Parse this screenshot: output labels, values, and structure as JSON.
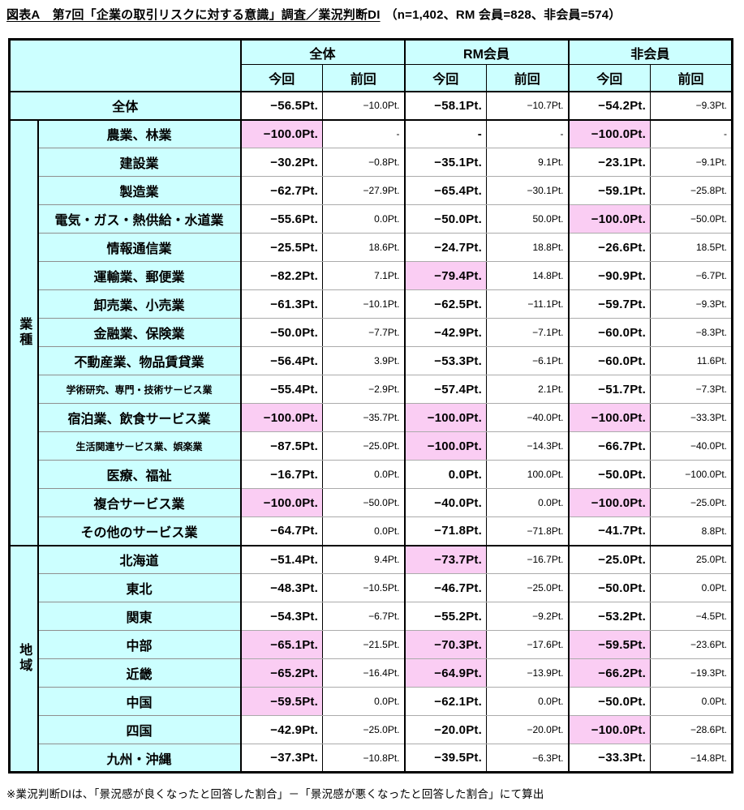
{
  "title": {
    "main": "図表А　第7回「企業の取引リスクに対する意識」調査／業況判断DI",
    "note": "（n=1,402、RM 会員=828、非会員=574）"
  },
  "footnote": "※業況判断DIは、「景況感が良くなったと回答した割合」－「景況感が悪くなったと回答した割合」にて算出",
  "colors": {
    "header_bg": "#ccffff",
    "label_bg": "#ccffff",
    "highlight_bg": "#facdf3",
    "grid_minor": "#ababab",
    "grid_major": "#000000"
  },
  "table": {
    "col_groups": [
      "全体",
      "RM会員",
      "非会員"
    ],
    "sub_headers": [
      "今回",
      "前回"
    ],
    "sections": [
      {
        "group_label": "",
        "rows": [
          {
            "label": "全体",
            "cells": [
              {
                "t": "−56.5Pt.",
                "hl": false
              },
              {
                "t": "−10.0Pt.",
                "hl": false
              },
              {
                "t": "−58.1Pt.",
                "hl": false
              },
              {
                "t": "−10.7Pt.",
                "hl": false
              },
              {
                "t": "−54.2Pt.",
                "hl": false
              },
              {
                "t": "−9.3Pt.",
                "hl": false
              }
            ]
          }
        ]
      },
      {
        "group_label": "業種",
        "rows": [
          {
            "label": "農業、林業",
            "cells": [
              {
                "t": "−100.0Pt.",
                "hl": true
              },
              {
                "t": "-",
                "hl": false
              },
              {
                "t": "-",
                "hl": false
              },
              {
                "t": "-",
                "hl": false
              },
              {
                "t": "−100.0Pt.",
                "hl": true
              },
              {
                "t": "-",
                "hl": false
              }
            ]
          },
          {
            "label": "建設業",
            "cells": [
              {
                "t": "−30.2Pt.",
                "hl": false
              },
              {
                "t": "−0.8Pt.",
                "hl": false
              },
              {
                "t": "−35.1Pt.",
                "hl": false
              },
              {
                "t": "9.1Pt.",
                "hl": false
              },
              {
                "t": "−23.1Pt.",
                "hl": false
              },
              {
                "t": "−9.1Pt.",
                "hl": false
              }
            ]
          },
          {
            "label": "製造業",
            "cells": [
              {
                "t": "−62.7Pt.",
                "hl": false
              },
              {
                "t": "−27.9Pt.",
                "hl": false
              },
              {
                "t": "−65.4Pt.",
                "hl": false
              },
              {
                "t": "−30.1Pt.",
                "hl": false
              },
              {
                "t": "−59.1Pt.",
                "hl": false
              },
              {
                "t": "−25.8Pt.",
                "hl": false
              }
            ]
          },
          {
            "label": "電気・ガス・熱供給・水道業",
            "cells": [
              {
                "t": "−55.6Pt.",
                "hl": false
              },
              {
                "t": "0.0Pt.",
                "hl": false
              },
              {
                "t": "−50.0Pt.",
                "hl": false
              },
              {
                "t": "50.0Pt.",
                "hl": false
              },
              {
                "t": "−100.0Pt.",
                "hl": true
              },
              {
                "t": "−50.0Pt.",
                "hl": false
              }
            ]
          },
          {
            "label": "情報通信業",
            "cells": [
              {
                "t": "−25.5Pt.",
                "hl": false
              },
              {
                "t": "18.6Pt.",
                "hl": false
              },
              {
                "t": "−24.7Pt.",
                "hl": false
              },
              {
                "t": "18.8Pt.",
                "hl": false
              },
              {
                "t": "−26.6Pt.",
                "hl": false
              },
              {
                "t": "18.5Pt.",
                "hl": false
              }
            ]
          },
          {
            "label": "運輸業、郵便業",
            "cells": [
              {
                "t": "−82.2Pt.",
                "hl": false
              },
              {
                "t": "7.1Pt.",
                "hl": false
              },
              {
                "t": "−79.4Pt.",
                "hl": true
              },
              {
                "t": "14.8Pt.",
                "hl": false
              },
              {
                "t": "−90.9Pt.",
                "hl": false
              },
              {
                "t": "−6.7Pt.",
                "hl": false
              }
            ]
          },
          {
            "label": "卸売業、小売業",
            "cells": [
              {
                "t": "−61.3Pt.",
                "hl": false
              },
              {
                "t": "−10.1Pt.",
                "hl": false
              },
              {
                "t": "−62.5Pt.",
                "hl": false
              },
              {
                "t": "−11.1Pt.",
                "hl": false
              },
              {
                "t": "−59.7Pt.",
                "hl": false
              },
              {
                "t": "−9.3Pt.",
                "hl": false
              }
            ]
          },
          {
            "label": "金融業、保険業",
            "cells": [
              {
                "t": "−50.0Pt.",
                "hl": false
              },
              {
                "t": "−7.7Pt.",
                "hl": false
              },
              {
                "t": "−42.9Pt.",
                "hl": false
              },
              {
                "t": "−7.1Pt.",
                "hl": false
              },
              {
                "t": "−60.0Pt.",
                "hl": false
              },
              {
                "t": "−8.3Pt.",
                "hl": false
              }
            ]
          },
          {
            "label": "不動産業、物品賃貸業",
            "cells": [
              {
                "t": "−56.4Pt.",
                "hl": false
              },
              {
                "t": "3.9Pt.",
                "hl": false
              },
              {
                "t": "−53.3Pt.",
                "hl": false
              },
              {
                "t": "−6.1Pt.",
                "hl": false
              },
              {
                "t": "−60.0Pt.",
                "hl": false
              },
              {
                "t": "11.6Pt.",
                "hl": false
              }
            ]
          },
          {
            "label": "学術研究、専門・技術サービス業",
            "small": true,
            "cells": [
              {
                "t": "−55.4Pt.",
                "hl": false
              },
              {
                "t": "−2.9Pt.",
                "hl": false
              },
              {
                "t": "−57.4Pt.",
                "hl": false
              },
              {
                "t": "2.1Pt.",
                "hl": false
              },
              {
                "t": "−51.7Pt.",
                "hl": false
              },
              {
                "t": "−7.3Pt.",
                "hl": false
              }
            ]
          },
          {
            "label": "宿泊業、飲食サービス業",
            "cells": [
              {
                "t": "−100.0Pt.",
                "hl": true
              },
              {
                "t": "−35.7Pt.",
                "hl": false
              },
              {
                "t": "−100.0Pt.",
                "hl": true
              },
              {
                "t": "−40.0Pt.",
                "hl": false
              },
              {
                "t": "−100.0Pt.",
                "hl": true
              },
              {
                "t": "−33.3Pt.",
                "hl": false
              }
            ]
          },
          {
            "label": "生活関連サービス業、娯楽業",
            "small": true,
            "cells": [
              {
                "t": "−87.5Pt.",
                "hl": false
              },
              {
                "t": "−25.0Pt.",
                "hl": false
              },
              {
                "t": "−100.0Pt.",
                "hl": true
              },
              {
                "t": "−14.3Pt.",
                "hl": false
              },
              {
                "t": "−66.7Pt.",
                "hl": false
              },
              {
                "t": "−40.0Pt.",
                "hl": false
              }
            ]
          },
          {
            "label": "医療、福祉",
            "cells": [
              {
                "t": "−16.7Pt.",
                "hl": false
              },
              {
                "t": "0.0Pt.",
                "hl": false
              },
              {
                "t": "0.0Pt.",
                "hl": false
              },
              {
                "t": "100.0Pt.",
                "hl": false
              },
              {
                "t": "−50.0Pt.",
                "hl": false
              },
              {
                "t": "−100.0Pt.",
                "hl": false
              }
            ]
          },
          {
            "label": "複合サービス業",
            "cells": [
              {
                "t": "−100.0Pt.",
                "hl": true
              },
              {
                "t": "−50.0Pt.",
                "hl": false
              },
              {
                "t": "−40.0Pt.",
                "hl": false
              },
              {
                "t": "0.0Pt.",
                "hl": false
              },
              {
                "t": "−100.0Pt.",
                "hl": true
              },
              {
                "t": "−25.0Pt.",
                "hl": false
              }
            ]
          },
          {
            "label": "その他のサービス業",
            "cells": [
              {
                "t": "−64.7Pt.",
                "hl": false
              },
              {
                "t": "0.0Pt.",
                "hl": false
              },
              {
                "t": "−71.8Pt.",
                "hl": false
              },
              {
                "t": "−71.8Pt.",
                "hl": false
              },
              {
                "t": "−41.7Pt.",
                "hl": false
              },
              {
                "t": "8.8Pt.",
                "hl": false
              }
            ]
          }
        ]
      },
      {
        "group_label": "地域",
        "rows": [
          {
            "label": "北海道",
            "cells": [
              {
                "t": "−51.4Pt.",
                "hl": false
              },
              {
                "t": "9.4Pt.",
                "hl": false
              },
              {
                "t": "−73.7Pt.",
                "hl": true
              },
              {
                "t": "−16.7Pt.",
                "hl": false
              },
              {
                "t": "−25.0Pt.",
                "hl": false
              },
              {
                "t": "25.0Pt.",
                "hl": false
              }
            ]
          },
          {
            "label": "東北",
            "cells": [
              {
                "t": "−48.3Pt.",
                "hl": false
              },
              {
                "t": "−10.5Pt.",
                "hl": false
              },
              {
                "t": "−46.7Pt.",
                "hl": false
              },
              {
                "t": "−25.0Pt.",
                "hl": false
              },
              {
                "t": "−50.0Pt.",
                "hl": false
              },
              {
                "t": "0.0Pt.",
                "hl": false
              }
            ]
          },
          {
            "label": "関東",
            "cells": [
              {
                "t": "−54.3Pt.",
                "hl": false
              },
              {
                "t": "−6.7Pt.",
                "hl": false
              },
              {
                "t": "−55.2Pt.",
                "hl": false
              },
              {
                "t": "−9.2Pt.",
                "hl": false
              },
              {
                "t": "−53.2Pt.",
                "hl": false
              },
              {
                "t": "−4.5Pt.",
                "hl": false
              }
            ]
          },
          {
            "label": "中部",
            "cells": [
              {
                "t": "−65.1Pt.",
                "hl": true
              },
              {
                "t": "−21.5Pt.",
                "hl": false
              },
              {
                "t": "−70.3Pt.",
                "hl": true
              },
              {
                "t": "−17.6Pt.",
                "hl": false
              },
              {
                "t": "−59.5Pt.",
                "hl": true
              },
              {
                "t": "−23.6Pt.",
                "hl": false
              }
            ]
          },
          {
            "label": "近畿",
            "cells": [
              {
                "t": "−65.2Pt.",
                "hl": true
              },
              {
                "t": "−16.4Pt.",
                "hl": false
              },
              {
                "t": "−64.9Pt.",
                "hl": true
              },
              {
                "t": "−13.9Pt.",
                "hl": false
              },
              {
                "t": "−66.2Pt.",
                "hl": true
              },
              {
                "t": "−19.3Pt.",
                "hl": false
              }
            ]
          },
          {
            "label": "中国",
            "cells": [
              {
                "t": "−59.5Pt.",
                "hl": true
              },
              {
                "t": "0.0Pt.",
                "hl": false
              },
              {
                "t": "−62.1Pt.",
                "hl": false
              },
              {
                "t": "0.0Pt.",
                "hl": false
              },
              {
                "t": "−50.0Pt.",
                "hl": false
              },
              {
                "t": "0.0Pt.",
                "hl": false
              }
            ]
          },
          {
            "label": "四国",
            "cells": [
              {
                "t": "−42.9Pt.",
                "hl": false
              },
              {
                "t": "−25.0Pt.",
                "hl": false
              },
              {
                "t": "−20.0Pt.",
                "hl": false
              },
              {
                "t": "−20.0Pt.",
                "hl": false
              },
              {
                "t": "−100.0Pt.",
                "hl": true
              },
              {
                "t": "−28.6Pt.",
                "hl": false
              }
            ]
          },
          {
            "label": "九州・沖縄",
            "cells": [
              {
                "t": "−37.3Pt.",
                "hl": false
              },
              {
                "t": "−10.8Pt.",
                "hl": false
              },
              {
                "t": "−39.5Pt.",
                "hl": false
              },
              {
                "t": "−6.3Pt.",
                "hl": false
              },
              {
                "t": "−33.3Pt.",
                "hl": false
              },
              {
                "t": "−14.8Pt.",
                "hl": false
              }
            ]
          }
        ]
      }
    ]
  }
}
